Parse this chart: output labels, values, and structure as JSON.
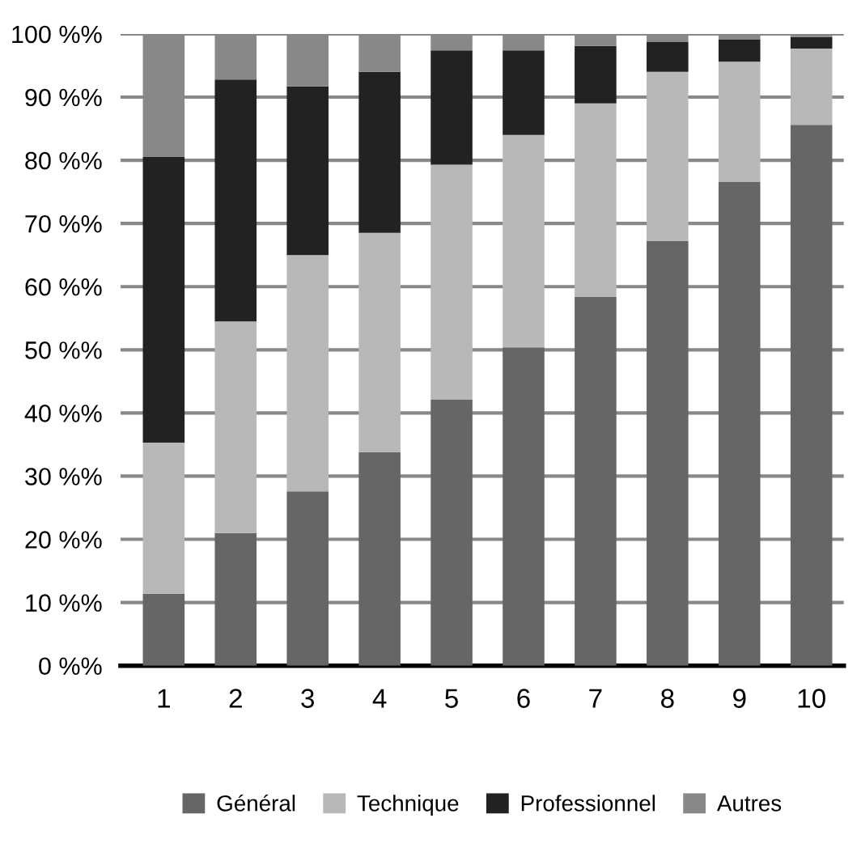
{
  "chart_data": {
    "type": "bar",
    "stacked": true,
    "categories": [
      "1",
      "2",
      "3",
      "4",
      "5",
      "6",
      "7",
      "8",
      "9",
      "10"
    ],
    "series": [
      {
        "name": "Général",
        "color": "#666666",
        "values": [
          11.4,
          21,
          27.6,
          33.8,
          42.1,
          50.4,
          58.4,
          67.2,
          76.6,
          85.6
        ]
      },
      {
        "name": "Technique",
        "color": "#b8b8b8",
        "values": [
          23.9,
          33.5,
          37.4,
          34.7,
          37.2,
          33.6,
          30.6,
          26.8,
          19,
          12.1
        ]
      },
      {
        "name": "Professionnel",
        "color": "#222222",
        "values": [
          45.3,
          38.3,
          26.7,
          25.5,
          18.1,
          13.4,
          9.1,
          4.7,
          3.5,
          1.8
        ]
      },
      {
        "name": "Autres",
        "color": "#888888",
        "values": [
          19.4,
          7.2,
          8.3,
          6,
          2.6,
          2.6,
          1.9,
          1.3,
          0.9,
          0.5
        ]
      }
    ],
    "ylim": [
      0,
      100
    ],
    "yticks": [
      {
        "value": 0,
        "label": "0 %%"
      },
      {
        "value": 10,
        "label": "10 %%"
      },
      {
        "value": 20,
        "label": "20 %%"
      },
      {
        "value": 30,
        "label": "30 %%"
      },
      {
        "value": 40,
        "label": "40 %%"
      },
      {
        "value": 50,
        "label": "50 %%"
      },
      {
        "value": 60,
        "label": "60 %%"
      },
      {
        "value": 70,
        "label": "70 %%"
      },
      {
        "value": 80,
        "label": "80 %%"
      },
      {
        "value": 90,
        "label": "90 %%"
      },
      {
        "value": 100,
        "label": "100 %%"
      }
    ],
    "grid": "y",
    "legend": "bottom"
  }
}
